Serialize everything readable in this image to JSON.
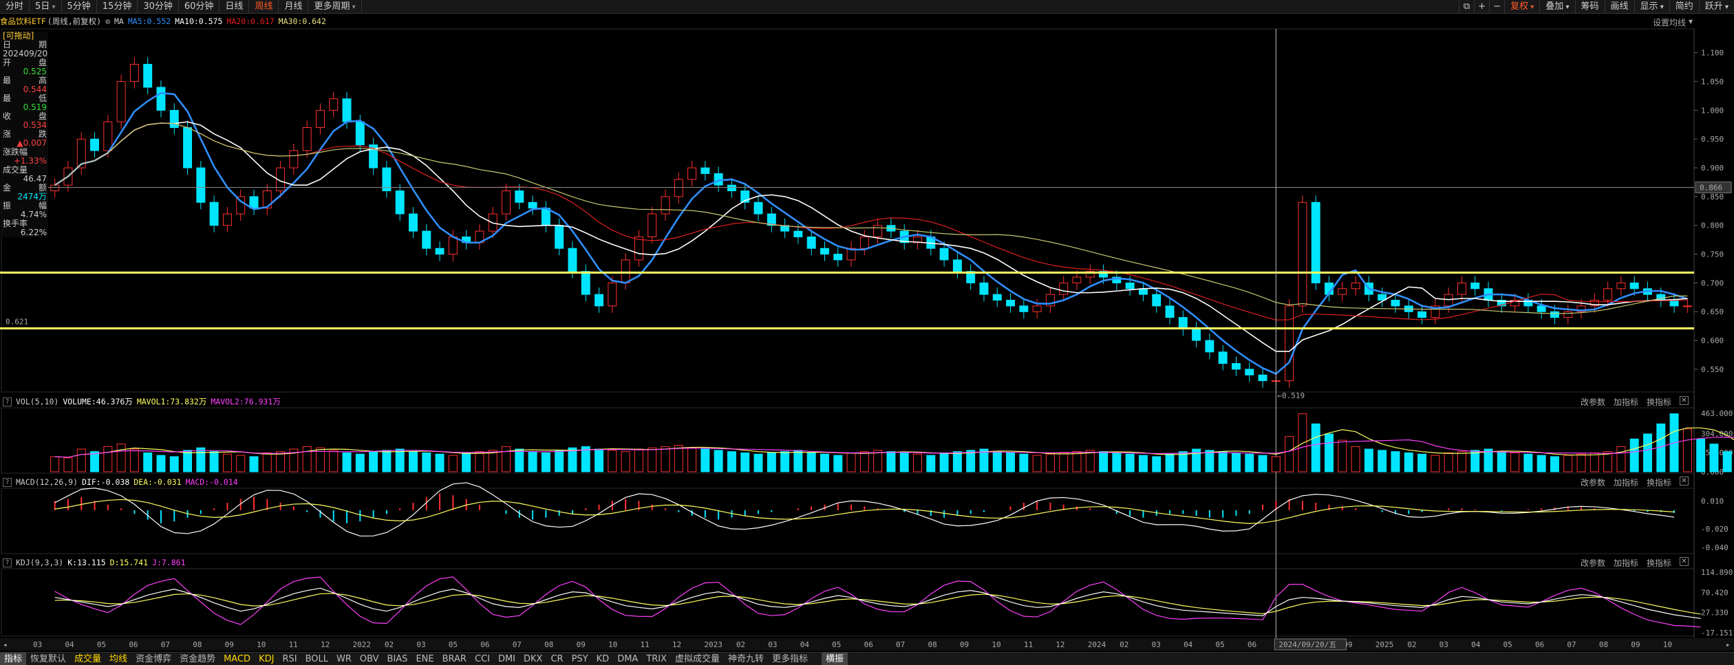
{
  "toolbar": {
    "periods": [
      "分时",
      "5日",
      "5分钟",
      "15分钟",
      "30分钟",
      "60分钟",
      "日线",
      "周线",
      "月线",
      "更多周期"
    ],
    "active_index": 7,
    "dropdown_indices": [
      1,
      9
    ],
    "right_icons": [
      "window-icon",
      "plus-icon",
      "minus-icon"
    ],
    "right": [
      "复权",
      "叠加",
      "筹码",
      "画线",
      "显示",
      "简约",
      "跃升"
    ],
    "right_dropdowns": [
      0,
      1,
      4,
      6
    ]
  },
  "header": {
    "title": "食品饮料ETF",
    "subtitle": "(周线,前复权)",
    "ma_label": "MA",
    "ma5": "MA5:0.552",
    "ma10": "MA10:0.575",
    "ma20": "MA20:0.617",
    "ma30": "MA30:0.642",
    "settings": "设置均线"
  },
  "info": {
    "draggable": "[可拖动]",
    "rows": [
      [
        "日",
        "期"
      ],
      [
        "2024",
        "09/20"
      ],
      [
        "开",
        "盘"
      ],
      [
        "",
        "0.525"
      ],
      [
        "最",
        "高"
      ],
      [
        "",
        "0.544"
      ],
      [
        "最",
        "低"
      ],
      [
        "",
        "0.519"
      ],
      [
        "收",
        "盘"
      ],
      [
        "",
        "0.534"
      ],
      [
        "涨",
        "跌"
      ],
      [
        "",
        "▲0.007"
      ],
      [
        "涨跌幅",
        ""
      ],
      [
        "",
        "+1.33%"
      ],
      [
        "成交量",
        ""
      ],
      [
        "",
        "46.47"
      ],
      [
        "金",
        "额"
      ],
      [
        "",
        "2474万"
      ],
      [
        "振",
        "幅"
      ],
      [
        "",
        "4.74%"
      ],
      [
        "换手率",
        ""
      ],
      [
        "",
        "6.22%"
      ]
    ]
  },
  "vol": {
    "label": "VOL(5,10)",
    "v1": "VOLUME:46.376万",
    "v2": "MAVOL1:73.832万",
    "v3": "MAVOL2:76.931万"
  },
  "macd": {
    "label": "MACD(12,26,9)",
    "v1": "DIF:-0.038",
    "v2": "DEA:-0.031",
    "v3": "MACD:-0.014"
  },
  "kdj": {
    "label": "KDJ(9,3,3)",
    "v1": "K:13.115",
    "v2": "D:15.741",
    "v3": "J:7.861"
  },
  "pane_tools": [
    "改参数",
    "加指标",
    "换指标"
  ],
  "cursor": {
    "date": "2024/09/20/五",
    "low_label": "←0.519"
  },
  "levels": {
    "upper": 0.718,
    "lower": 0.621,
    "lower_label": "0.621",
    "cursor_price": "0.866",
    "cursor_price_value": 0.866
  },
  "axes": {
    "price": [
      "1.100",
      "1.050",
      "1.000",
      "0.950",
      "0.900",
      "0.850",
      "0.800",
      "0.750",
      "0.700",
      "0.650",
      "0.600",
      "0.550"
    ],
    "price_values": [
      1.1,
      1.05,
      1.0,
      0.95,
      0.9,
      0.85,
      0.8,
      0.75,
      0.7,
      0.65,
      0.6,
      0.55
    ],
    "vol": [
      "463.000",
      "304.000",
      "154.000",
      "0.000"
    ],
    "vol_values": [
      463,
      304,
      154,
      0
    ],
    "macd": [
      "0.010",
      "-0.020",
      "-0.040"
    ],
    "macd_values": [
      0.01,
      -0.02,
      -0.04
    ],
    "kdj": [
      "114.890",
      "70.420",
      "27.330",
      "-17.151"
    ],
    "kdj_values": [
      114.89,
      70.42,
      27.33,
      -17.151
    ],
    "time": [
      "03",
      "04",
      "05",
      "06",
      "07",
      "08",
      "09",
      "10",
      "11",
      "12",
      "2022",
      "02",
      "03",
      "05",
      "06",
      "07",
      "08",
      "09",
      "10",
      "11",
      "12",
      "2023",
      "02",
      "03",
      "04",
      "05",
      "06",
      "07",
      "08",
      "09",
      "10",
      "11",
      "12",
      "2024",
      "02",
      "03",
      "04",
      "05",
      "06",
      "07",
      "08",
      "09",
      "2025",
      "02",
      "03",
      "04",
      "05",
      "06",
      "07",
      "08",
      "09",
      "10"
    ]
  },
  "bottom": {
    "left": [
      "指标",
      "恢复默认"
    ],
    "tabs": [
      "成交量",
      "均线",
      "资金博弈",
      "资金趋势",
      "MACD",
      "KDJ",
      "RSI",
      "BOLL",
      "WR",
      "OBV",
      "BIAS",
      "ENE",
      "BRAR",
      "CCI",
      "DMI",
      "DKX",
      "CR",
      "PSY",
      "KD",
      "DMA",
      "TRIX",
      "虚拟成交量",
      "神奇九转",
      "更多指标"
    ],
    "yellow": [
      0,
      1,
      4,
      5
    ],
    "right": "横振"
  },
  "colors": {
    "up": "#ff3030",
    "down": "#00e5ff",
    "ma5": "#2f8fff",
    "ma10": "#ffffff",
    "ma20": "#e02020",
    "ma30": "#c8c870",
    "level": "#ffff60"
  },
  "chart_data": {
    "type": "candlestick",
    "period": "weekly",
    "start": "2021-03",
    "closes": [
      0.87,
      0.9,
      0.95,
      0.93,
      0.98,
      1.05,
      1.08,
      1.04,
      1.0,
      0.97,
      0.9,
      0.84,
      0.8,
      0.82,
      0.85,
      0.83,
      0.86,
      0.9,
      0.93,
      0.97,
      1.0,
      1.02,
      0.98,
      0.94,
      0.9,
      0.86,
      0.82,
      0.79,
      0.76,
      0.75,
      0.78,
      0.77,
      0.79,
      0.82,
      0.86,
      0.84,
      0.83,
      0.8,
      0.76,
      0.72,
      0.68,
      0.66,
      0.7,
      0.74,
      0.78,
      0.82,
      0.85,
      0.88,
      0.9,
      0.89,
      0.87,
      0.86,
      0.84,
      0.82,
      0.8,
      0.79,
      0.78,
      0.76,
      0.75,
      0.74,
      0.76,
      0.78,
      0.8,
      0.79,
      0.77,
      0.78,
      0.76,
      0.74,
      0.72,
      0.7,
      0.68,
      0.67,
      0.66,
      0.65,
      0.66,
      0.68,
      0.7,
      0.71,
      0.72,
      0.71,
      0.7,
      0.69,
      0.68,
      0.66,
      0.64,
      0.62,
      0.6,
      0.58,
      0.56,
      0.55,
      0.54,
      0.53,
      0.53,
      0.66,
      0.84,
      0.7,
      0.68,
      0.69,
      0.7,
      0.68,
      0.67,
      0.66,
      0.65,
      0.64,
      0.66,
      0.68,
      0.7,
      0.69,
      0.67,
      0.66,
      0.67,
      0.66,
      0.65,
      0.64,
      0.65,
      0.66,
      0.67,
      0.69,
      0.7,
      0.69,
      0.68,
      0.67,
      0.66,
      0.66
    ],
    "volumes": [
      120,
      110,
      180,
      160,
      200,
      220,
      180,
      150,
      130,
      120,
      170,
      190,
      160,
      140,
      130,
      120,
      150,
      160,
      180,
      200,
      190,
      170,
      150,
      140,
      160,
      170,
      180,
      160,
      150,
      140,
      130,
      150,
      160,
      170,
      200,
      180,
      160,
      150,
      170,
      190,
      200,
      180,
      170,
      160,
      180,
      190,
      200,
      210,
      190,
      180,
      170,
      160,
      150,
      140,
      150,
      160,
      170,
      150,
      140,
      130,
      150,
      160,
      170,
      160,
      150,
      140,
      130,
      150,
      160,
      170,
      180,
      160,
      150,
      140,
      130,
      140,
      150,
      160,
      170,
      160,
      150,
      140,
      130,
      120,
      140,
      160,
      180,
      170,
      160,
      150,
      140,
      130,
      120,
      280,
      460,
      380,
      300,
      250,
      200,
      180,
      170,
      160,
      150,
      140,
      130,
      150,
      160,
      170,
      180,
      160,
      150,
      140,
      130,
      120,
      130,
      140,
      150,
      160,
      200,
      260,
      300,
      380,
      460,
      340,
      260,
      220,
      160,
      120
    ],
    "macd_hist": [
      0.01,
      0.012,
      0.014,
      0.01,
      0.006,
      0.002,
      -0.004,
      -0.01,
      -0.014,
      -0.012,
      -0.008,
      -0.004,
      0.002,
      0.008,
      0.012,
      0.014,
      0.012,
      0.008,
      0.004,
      -0.002,
      -0.008,
      -0.012,
      -0.014,
      -0.012,
      -0.008,
      -0.004,
      0.002,
      0.008,
      0.014,
      0.018,
      0.016,
      0.012,
      0.006,
      0.0,
      -0.004,
      -0.008,
      -0.01,
      -0.008,
      -0.006,
      -0.004,
      0.002,
      0.006,
      0.01,
      0.012,
      0.01,
      0.006,
      0.002,
      -0.002,
      -0.006,
      -0.008,
      -0.01,
      -0.008,
      -0.006,
      -0.004,
      -0.002,
      0.0,
      0.002,
      0.004,
      0.006,
      0.008,
      0.006,
      0.004,
      0.002,
      0.0,
      -0.002,
      -0.004,
      -0.006,
      -0.008,
      -0.006,
      -0.004,
      -0.002,
      0.0,
      0.004,
      0.008,
      0.01,
      0.008,
      0.006,
      0.004,
      0.002,
      0.0,
      -0.004,
      -0.006,
      -0.008,
      -0.006,
      -0.004,
      -0.004,
      -0.006,
      -0.008,
      -0.008,
      -0.006,
      -0.004,
      0.006,
      0.01,
      0.012,
      0.01,
      0.008,
      0.006,
      0.004,
      0.002,
      0.0,
      -0.002,
      -0.004,
      -0.004,
      -0.002,
      0.0,
      0.002,
      0.002,
      0.001,
      0.0,
      -0.001,
      0.0,
      0.001,
      0.002,
      0.003,
      0.004,
      0.003,
      0.002,
      0.001,
      0.0,
      -0.001,
      -0.002,
      -0.002,
      -0.003
    ],
    "kdj_k": [
      60,
      55,
      50,
      45,
      40,
      45,
      55,
      65,
      72,
      78,
      70,
      60,
      48,
      38,
      30,
      35,
      45,
      58,
      68,
      75,
      80,
      70,
      58,
      45,
      35,
      30,
      38,
      50,
      62,
      72,
      78,
      70,
      58,
      46,
      40,
      38,
      45,
      55,
      65,
      72,
      70,
      60,
      50,
      42,
      38,
      35,
      40,
      50,
      60,
      68,
      72,
      65,
      55,
      45,
      40,
      38,
      42,
      50,
      58,
      64,
      60,
      52,
      46,
      42,
      40,
      45,
      55,
      65,
      72,
      75,
      70,
      60,
      50,
      42,
      38,
      40,
      48,
      58,
      66,
      72,
      68,
      60,
      50,
      42,
      36,
      32,
      30,
      28,
      26,
      24,
      22,
      20,
      40,
      55,
      60,
      58,
      55,
      52,
      50,
      48,
      45,
      42,
      40,
      38,
      45,
      55,
      62,
      60,
      55,
      50,
      48,
      46,
      50,
      56,
      62,
      66,
      64,
      58,
      50,
      42,
      34,
      28,
      22,
      18,
      14
    ]
  }
}
